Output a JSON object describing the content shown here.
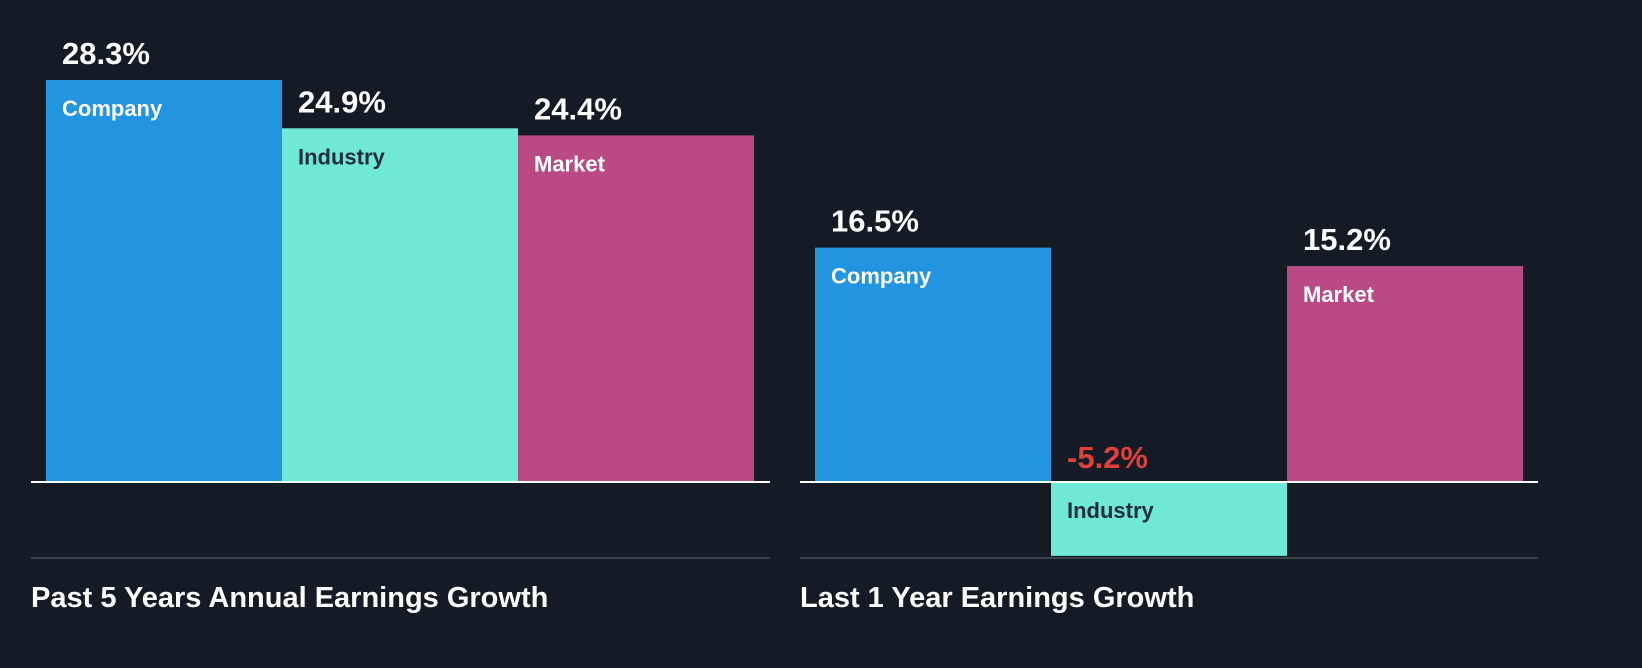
{
  "colors": {
    "background": "#151b24",
    "company": "#2394e0",
    "industry": "#6fe8d8",
    "market": "#b94a85",
    "value_positive": "#ffffff",
    "value_negative": "#e0403a",
    "label_on_dark_bar": "#ffffff",
    "label_on_light_bar": "#1f2e3a",
    "baseline": "#ffffff",
    "divider": "#4a505a",
    "title": "#ffffff"
  },
  "chart_data": [
    {
      "type": "bar",
      "title": "Past 5 Years Annual Earnings Growth",
      "categories": [
        "Company",
        "Industry",
        "Market"
      ],
      "values": [
        28.3,
        24.9,
        24.4
      ],
      "value_labels": [
        "28.3%",
        "24.9%",
        "24.4%"
      ],
      "ylim": [
        -5.2,
        28.3
      ],
      "grid": false,
      "legend": "none"
    },
    {
      "type": "bar",
      "title": "Last 1 Year Earnings Growth",
      "categories": [
        "Company",
        "Industry",
        "Market"
      ],
      "values": [
        16.5,
        -5.2,
        15.2
      ],
      "value_labels": [
        "16.5%",
        "-5.2%",
        "15.2%"
      ],
      "ylim": [
        -5.2,
        28.3
      ],
      "grid": false,
      "legend": "none"
    }
  ]
}
